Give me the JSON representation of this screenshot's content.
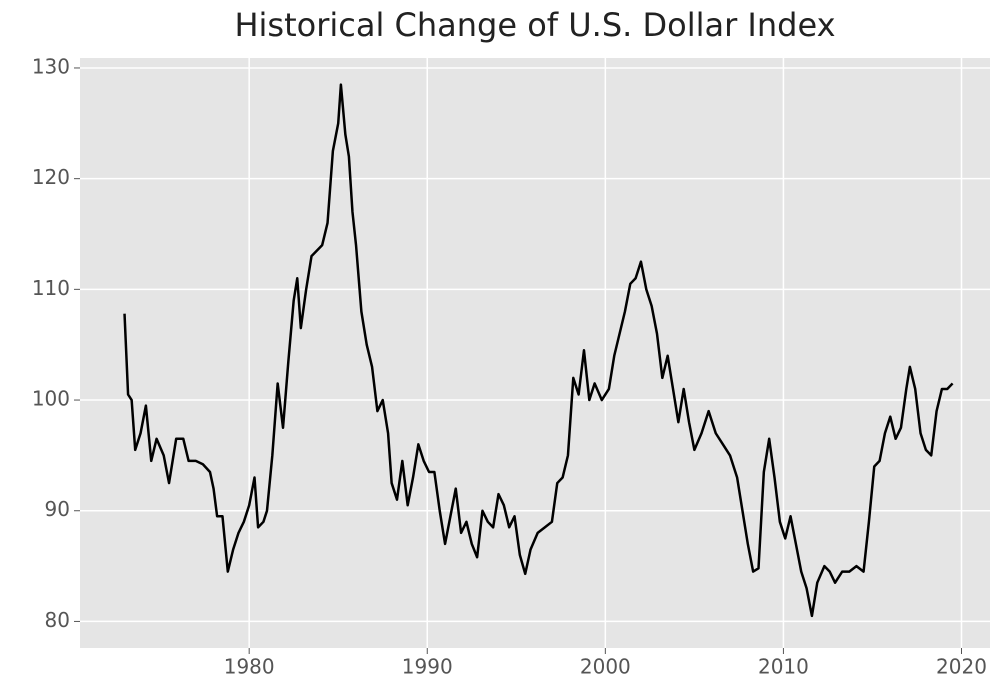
{
  "chart_data": {
    "type": "line",
    "title": "Historical Change of U.S. Dollar Index",
    "x": [
      1973.0,
      1973.2,
      1973.4,
      1973.6,
      1973.9,
      1974.2,
      1974.5,
      1974.8,
      1975.2,
      1975.5,
      1975.9,
      1976.3,
      1976.6,
      1977.0,
      1977.4,
      1977.8,
      1978.0,
      1978.2,
      1978.5,
      1978.8,
      1979.1,
      1979.4,
      1979.7,
      1980.0,
      1980.3,
      1980.5,
      1980.8,
      1981.0,
      1981.3,
      1981.6,
      1981.9,
      1982.2,
      1982.5,
      1982.7,
      1982.9,
      1983.2,
      1983.5,
      1983.8,
      1984.1,
      1984.4,
      1984.7,
      1985.0,
      1985.15,
      1985.4,
      1985.6,
      1985.8,
      1986.0,
      1986.3,
      1986.6,
      1986.9,
      1987.2,
      1987.5,
      1987.8,
      1988.0,
      1988.3,
      1988.6,
      1988.9,
      1989.2,
      1989.5,
      1989.8,
      1990.1,
      1990.4,
      1990.7,
      1991.0,
      1991.3,
      1991.6,
      1991.9,
      1992.2,
      1992.5,
      1992.8,
      1993.1,
      1993.4,
      1993.7,
      1994.0,
      1994.3,
      1994.6,
      1994.9,
      1995.2,
      1995.5,
      1995.8,
      1996.2,
      1996.6,
      1997.0,
      1997.3,
      1997.6,
      1997.9,
      1998.2,
      1998.5,
      1998.8,
      1999.1,
      1999.4,
      1999.8,
      2000.2,
      2000.5,
      2000.8,
      2001.1,
      2001.4,
      2001.7,
      2002.0,
      2002.3,
      2002.6,
      2002.9,
      2003.2,
      2003.5,
      2003.8,
      2004.1,
      2004.4,
      2004.7,
      2005.0,
      2005.4,
      2005.8,
      2006.2,
      2006.6,
      2007.0,
      2007.4,
      2007.8,
      2008.0,
      2008.3,
      2008.6,
      2008.9,
      2009.2,
      2009.5,
      2009.8,
      2010.1,
      2010.4,
      2010.7,
      2011.0,
      2011.3,
      2011.6,
      2011.9,
      2012.3,
      2012.6,
      2012.9,
      2013.3,
      2013.7,
      2014.1,
      2014.5,
      2014.8,
      2015.1,
      2015.4,
      2015.7,
      2016.0,
      2016.3,
      2016.6,
      2016.9,
      2017.1,
      2017.4,
      2017.7,
      2018.0,
      2018.3,
      2018.6,
      2018.9,
      2019.2,
      2019.5
    ],
    "series": [
      {
        "name": "U.S. Dollar Index",
        "color": "#000000",
        "values": [
          107.8,
          100.5,
          100,
          95.5,
          97,
          99.5,
          94.5,
          96.5,
          95,
          92.5,
          96.5,
          96.5,
          94.5,
          94.5,
          94.2,
          93.5,
          92,
          89.5,
          89.5,
          84.5,
          86.5,
          88,
          89,
          90.5,
          93,
          88.5,
          89,
          90,
          95,
          101.5,
          97.5,
          103.5,
          109,
          111,
          106.5,
          110,
          113,
          113.5,
          114,
          116,
          122.5,
          125,
          128.5,
          124,
          122,
          117,
          114,
          108,
          105,
          103,
          99,
          100,
          97,
          92.5,
          91,
          94.5,
          90.5,
          93,
          96,
          94.5,
          93.5,
          93.5,
          90,
          87,
          89.5,
          92,
          88,
          89,
          87,
          85.8,
          90,
          89,
          88.5,
          91.5,
          90.5,
          88.5,
          89.5,
          86,
          84.3,
          86.5,
          88,
          88.5,
          89,
          92.5,
          93,
          95,
          102,
          100.5,
          104.5,
          100,
          101.5,
          100,
          101,
          104,
          106,
          108,
          110.5,
          111,
          112.5,
          110,
          108.5,
          106,
          102,
          104,
          101,
          98,
          101,
          98,
          95.5,
          97,
          99,
          97,
          96,
          95,
          93,
          89,
          87,
          84.5,
          84.8,
          93.5,
          96.5,
          93,
          89,
          87.5,
          89.5,
          87,
          84.5,
          83,
          80.5,
          83.5,
          85,
          84.5,
          83.5,
          84.5,
          84.5,
          85,
          84.5,
          89,
          94,
          94.5,
          97,
          98.5,
          96.5,
          97.5,
          101,
          103,
          101,
          97,
          95.5,
          95,
          99,
          101,
          101,
          101.5
        ]
      }
    ],
    "xlim": [
      1970.5,
      2021.6
    ],
    "ylim": [
      77.6,
      130.9
    ],
    "xticks": [
      1980,
      1990,
      2000,
      2010,
      2020
    ],
    "yticks": [
      80,
      90,
      100,
      110,
      120,
      130
    ],
    "grid": true
  }
}
